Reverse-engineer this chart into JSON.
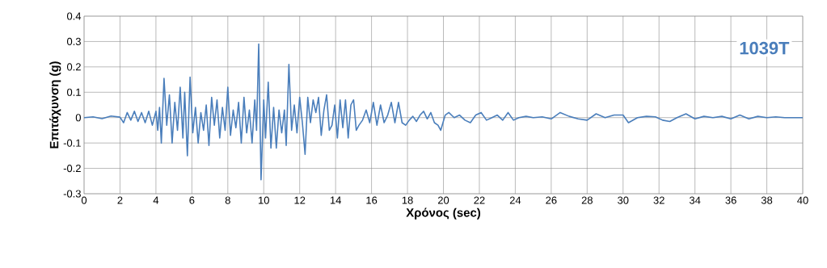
{
  "chart_data": {
    "type": "line",
    "xlabel": "Χρόνος (sec)",
    "ylabel": "Επιτάχυνση (g)",
    "annotations": [
      "1039T"
    ],
    "xlim": [
      0,
      40
    ],
    "xticks": [
      0,
      2,
      4,
      6,
      8,
      10,
      12,
      14,
      16,
      18,
      20,
      22,
      24,
      26,
      28,
      30,
      32,
      34,
      36,
      38,
      40
    ],
    "ylim": [
      -0.3,
      0.4
    ],
    "yticks": [
      -0.3,
      -0.2,
      -0.1,
      0,
      0.1,
      0.2,
      0.3,
      0.4
    ],
    "grid": true,
    "series": [
      {
        "color": "#4a7ebb",
        "x": [
          0,
          0.5,
          1,
          1.5,
          2,
          2.2,
          2.4,
          2.6,
          2.8,
          3.0,
          3.2,
          3.4,
          3.6,
          3.8,
          4.0,
          4.1,
          4.2,
          4.3,
          4.45,
          4.6,
          4.75,
          4.9,
          5.05,
          5.2,
          5.35,
          5.5,
          5.6,
          5.75,
          5.9,
          6.05,
          6.2,
          6.35,
          6.5,
          6.65,
          6.8,
          6.95,
          7.1,
          7.25,
          7.4,
          7.55,
          7.7,
          7.85,
          8.0,
          8.15,
          8.3,
          8.45,
          8.6,
          8.75,
          8.9,
          9.05,
          9.2,
          9.35,
          9.5,
          9.6,
          9.72,
          9.85,
          10.0,
          10.1,
          10.25,
          10.4,
          10.55,
          10.7,
          10.85,
          11.0,
          11.15,
          11.25,
          11.4,
          11.55,
          11.7,
          11.85,
          12.0,
          12.15,
          12.3,
          12.45,
          12.6,
          12.75,
          12.9,
          13.05,
          13.2,
          13.35,
          13.5,
          13.65,
          13.8,
          13.95,
          14.1,
          14.25,
          14.4,
          14.55,
          14.7,
          14.85,
          15.0,
          15.15,
          15.3,
          15.5,
          15.7,
          15.9,
          16.1,
          16.3,
          16.5,
          16.7,
          16.9,
          17.1,
          17.3,
          17.5,
          17.7,
          17.9,
          18.1,
          18.3,
          18.5,
          18.7,
          18.9,
          19.1,
          19.3,
          19.5,
          19.7,
          19.85,
          20.1,
          20.3,
          20.6,
          20.9,
          21.2,
          21.5,
          21.8,
          22.1,
          22.4,
          22.7,
          23.0,
          23.3,
          23.6,
          23.9,
          24.2,
          24.6,
          25.0,
          25.5,
          26.0,
          26.5,
          27.0,
          27.5,
          28.0,
          28.5,
          29.0,
          29.5,
          30.0,
          30.3,
          30.8,
          31.3,
          31.8,
          32.2,
          32.6,
          33.0,
          33.5,
          34.0,
          34.5,
          35.0,
          35.5,
          36.0,
          36.5,
          37.0,
          37.5,
          38.0,
          38.5,
          39.0,
          40
        ],
        "values": [
          0,
          0.003,
          -0.004,
          0.006,
          0.002,
          -0.02,
          0.02,
          -0.01,
          0.025,
          -0.015,
          0.02,
          -0.02,
          0.025,
          -0.03,
          0.025,
          -0.05,
          0.04,
          -0.1,
          0.155,
          -0.03,
          0.09,
          -0.1,
          0.06,
          -0.05,
          0.12,
          -0.08,
          0.1,
          -0.15,
          0.16,
          -0.06,
          0.04,
          -0.1,
          0.02,
          -0.05,
          0.05,
          -0.11,
          0.08,
          -0.03,
          0.07,
          -0.08,
          0.04,
          -0.05,
          0.12,
          -0.07,
          0.03,
          -0.04,
          0.06,
          -0.1,
          0.08,
          -0.06,
          0.03,
          -0.1,
          0.07,
          -0.05,
          0.29,
          -0.245,
          0.07,
          -0.08,
          0.14,
          -0.12,
          0.04,
          -0.12,
          0.03,
          -0.06,
          0.03,
          -0.11,
          0.21,
          -0.05,
          0.05,
          -0.06,
          0.08,
          -0.02,
          -0.145,
          0.08,
          -0.02,
          0.07,
          0.02,
          0.08,
          -0.07,
          0.03,
          0.09,
          -0.05,
          -0.03,
          0.05,
          -0.08,
          0.07,
          -0.04,
          0.07,
          -0.08,
          0.05,
          0.07,
          -0.05,
          -0.03,
          -0.01,
          0.03,
          -0.02,
          0.06,
          -0.03,
          0.05,
          -0.02,
          0.01,
          0.06,
          -0.02,
          0.06,
          -0.02,
          -0.03,
          -0.01,
          0.005,
          -0.015,
          0.01,
          0.025,
          -0.005,
          0.02,
          -0.02,
          -0.03,
          -0.05,
          0.01,
          0.02,
          0.0,
          0.01,
          -0.01,
          -0.02,
          0.01,
          0.02,
          -0.01,
          0.0,
          0.01,
          -0.01,
          0.02,
          -0.01,
          0.0,
          0.005,
          0.0,
          0.003,
          -0.005,
          0.02,
          0.005,
          -0.005,
          -0.01,
          0.015,
          0.0,
          0.01,
          0.01,
          -0.02,
          0.0,
          0.005,
          0.003,
          -0.01,
          -0.015,
          0.0,
          0.015,
          -0.005,
          0.005,
          0.0,
          0.005,
          -0.005,
          0.01,
          -0.005,
          0.005,
          0.0,
          0.003,
          0.0,
          0.0
        ]
      }
    ]
  }
}
